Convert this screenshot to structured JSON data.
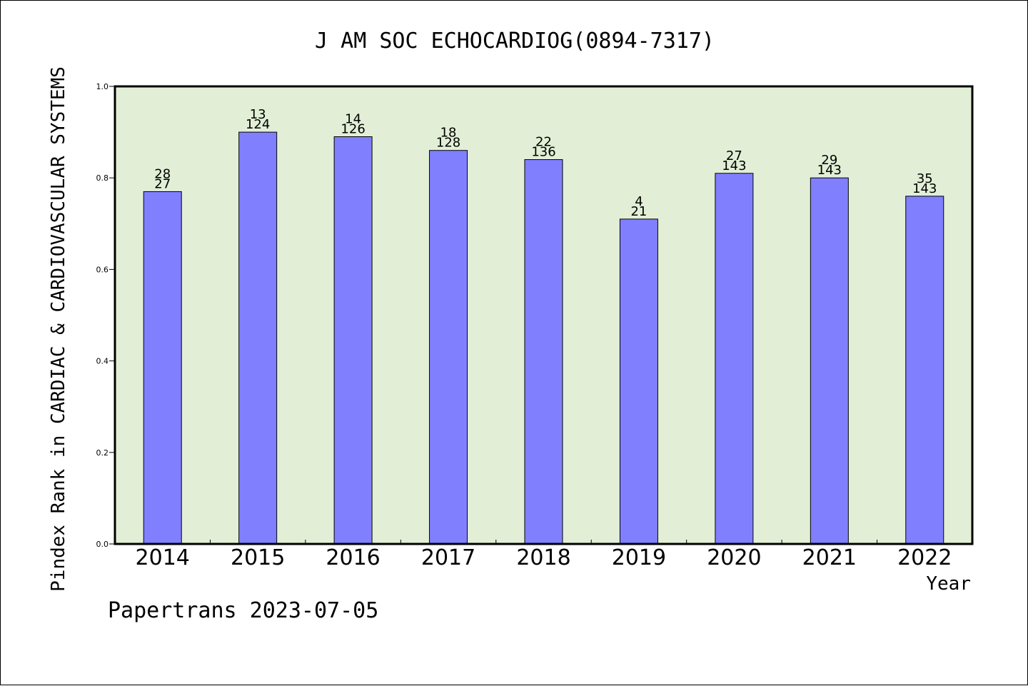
{
  "chart_data": {
    "type": "bar",
    "title": "J AM SOC ECHOCARDIOG(0894-7317)",
    "xlabel": "Year",
    "ylabel": "Pindex Rank in CARDIAC & CARDIOVASCULAR SYSTEMS",
    "footer": "Papertrans 2023-07-05",
    "categories": [
      "2014",
      "2015",
      "2016",
      "2017",
      "2018",
      "2019",
      "2020",
      "2021",
      "2022"
    ],
    "values": [
      0.77,
      0.9,
      0.89,
      0.86,
      0.84,
      0.71,
      0.81,
      0.8,
      0.76
    ],
    "rank_labels": [
      "28",
      "13",
      "14",
      "18",
      "22",
      "4",
      "27",
      "29",
      "35"
    ],
    "total_labels": [
      "27",
      "124",
      "126",
      "128",
      "136",
      "21",
      "143",
      "143",
      "143"
    ],
    "ylim": [
      0,
      1.0
    ],
    "yticks": [
      "0.0",
      "0.2",
      "0.4",
      "0.6",
      "0.8",
      "1.0"
    ],
    "grid": false,
    "colors": {
      "plot_background": "#e2efd6",
      "bar_fill": "#8080ff",
      "bar_stroke": "#000000"
    }
  }
}
